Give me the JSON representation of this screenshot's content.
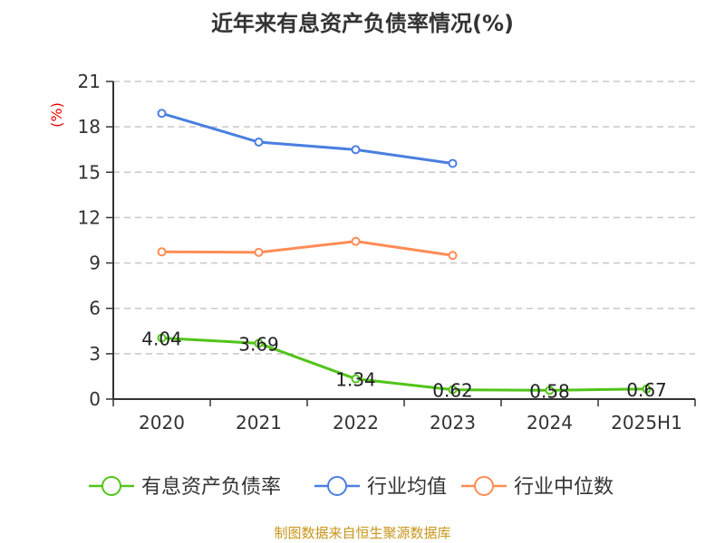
{
  "chart_data": {
    "type": "line",
    "title": "近年来有息资产负债率情况(%)",
    "ylabel": "(%)",
    "xlabel": "",
    "categories": [
      "2020",
      "2021",
      "2022",
      "2023",
      "2024",
      "2025H1"
    ],
    "ylim": [
      0,
      21
    ],
    "yticks": [
      0,
      3,
      6,
      9,
      12,
      15,
      18,
      21
    ],
    "grid": true,
    "legend_position": "bottom",
    "series": [
      {
        "name": "有息资产负债率",
        "color": "#52c41a",
        "values": [
          4.04,
          3.69,
          1.34,
          0.62,
          0.58,
          0.67
        ],
        "labels": [
          "4.04",
          "3.69",
          "1.34",
          "0.62",
          "0.58",
          "0.67"
        ]
      },
      {
        "name": "行业均值",
        "color": "#4a7fe0",
        "values": [
          18.89,
          16.99,
          16.49,
          15.58,
          null,
          null
        ]
      },
      {
        "name": "行业中位数",
        "color": "#ff8c55",
        "values": [
          9.74,
          9.7,
          10.43,
          9.5,
          null,
          null
        ]
      }
    ]
  },
  "source": "制图数据来自恒生聚源数据库"
}
